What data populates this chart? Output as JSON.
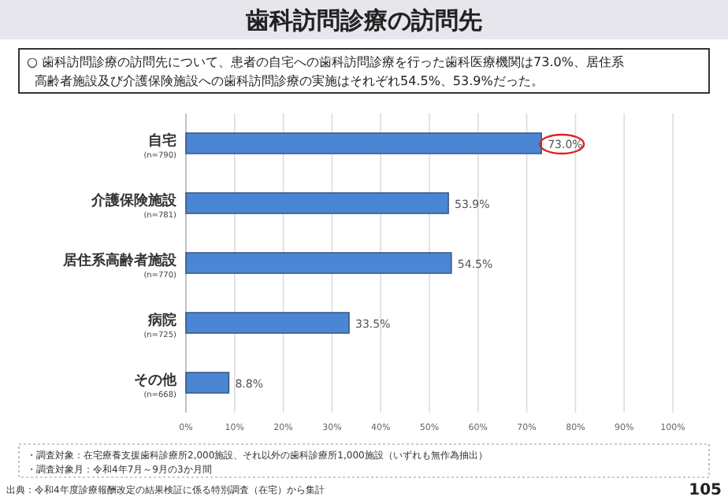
{
  "chart_data": {
    "type": "bar",
    "orientation": "horizontal",
    "title": "歯科訪問診療の訪問先",
    "subtitle": "○ 歯科訪問診療の訪問先について、患者の自宅への歯科訪問診療を行った歯科医療機関は73.0%、居住系高齢者施設及び介護保険施設への歯科訪問診療の実施はそれぞれ54.5%、53.9%だった。",
    "categories": [
      "自宅",
      "介護保険施設",
      "居住系高齢者施設",
      "病院",
      "その他"
    ],
    "values": [
      73.0,
      53.9,
      54.5,
      33.5,
      8.8
    ],
    "value_labels": [
      "73.0%",
      "53.9%",
      "54.5%",
      "33.5%",
      "8.8%"
    ],
    "color": "#4a86d4",
    "xlim": [
      0,
      100
    ],
    "xticks": [
      {
        "value": 0,
        "label": "0%"
      },
      {
        "value": 10,
        "label": "10%"
      },
      {
        "value": 20,
        "label": "20%"
      },
      {
        "value": 30,
        "label": "30%"
      },
      {
        "value": 40,
        "label": "40%"
      },
      {
        "value": 50,
        "label": "50%"
      },
      {
        "value": 60,
        "label": "60%"
      },
      {
        "value": 70,
        "label": "70%"
      },
      {
        "value": 80,
        "label": "80%"
      },
      {
        "value": 90,
        "label": "90%"
      },
      {
        "value": 100,
        "label": "100%"
      }
    ],
    "grid": "x",
    "annotations": [
      "(n=790)",
      "(n=781)",
      "(n=770)",
      "(n=725)",
      "(n=668)",
      "・調査対象：在宅療養支援歯科診療所2,000施設、それ以外の歯科診療所1,000施設（いずれも無作為抽出）",
      "・調査対象月：令和4年7月～9月の3か月間",
      "出典：令和4年度診療報酬改定の結果検証に係る特別調査（在宅）から集計",
      "105"
    ]
  }
}
